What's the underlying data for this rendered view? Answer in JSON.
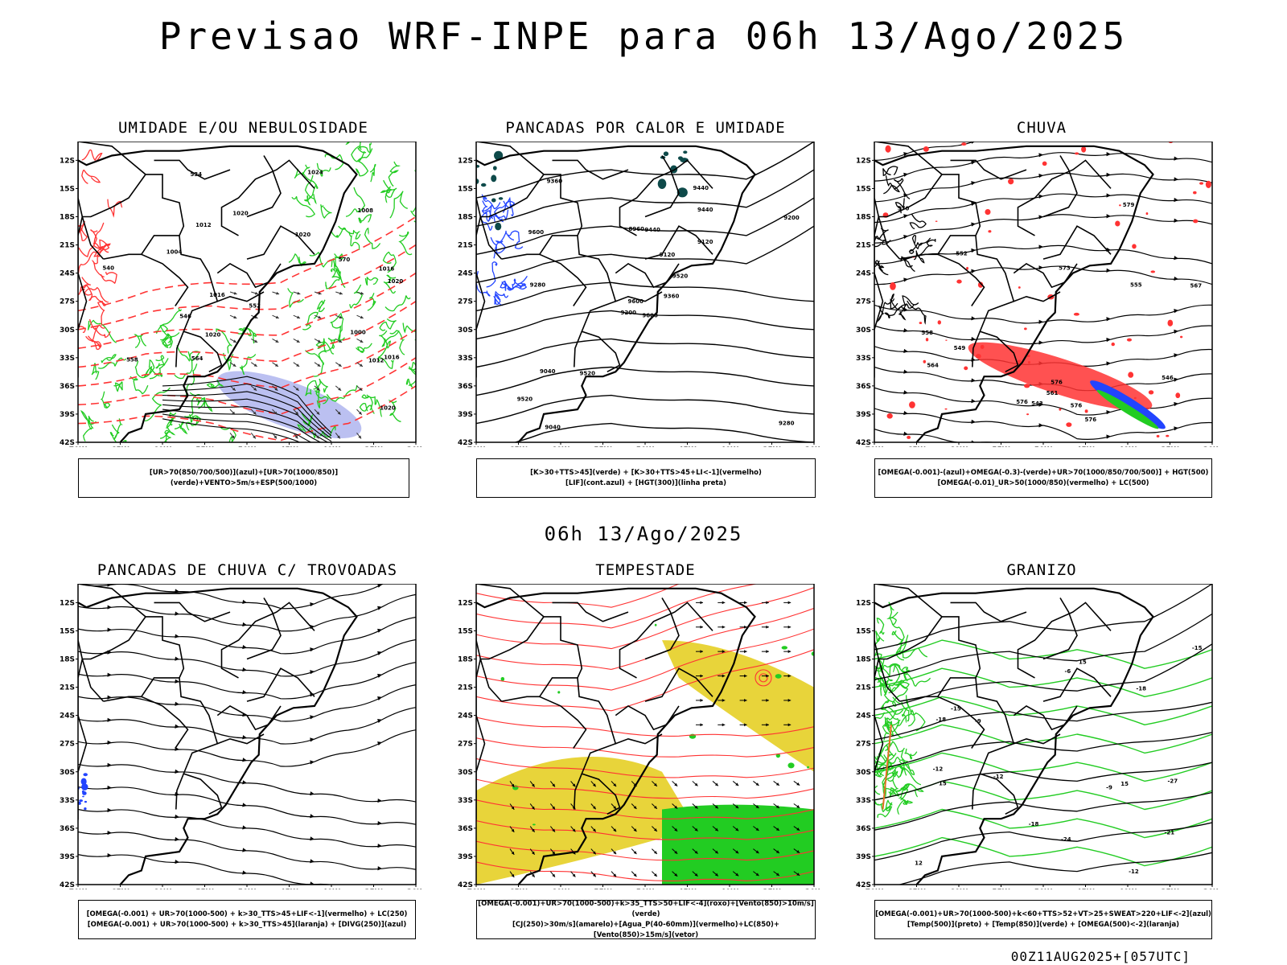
{
  "page": {
    "main_title": "Previsao WRF-INPE  para 06h 13/Ago/2025",
    "mid_title": "06h 13/Ago/2025",
    "run_stamp": "00Z11AUG2025+[057UTC]"
  },
  "axes": {
    "lat_labels": [
      "12S",
      "15S",
      "18S",
      "21S",
      "24S",
      "27S",
      "30S",
      "33S",
      "36S",
      "39S",
      "42S"
    ],
    "lon_labels": [
      "70W",
      "65W",
      "60W",
      "55W",
      "50W",
      "45W",
      "40W",
      "35W",
      "30W"
    ]
  },
  "colors": {
    "green": "#22cc22",
    "red": "#ff3333",
    "blue": "#2244ff",
    "lavender": "#aab0ee",
    "yellow": "#e8d43a",
    "dark_teal": "#0e4a4a",
    "black": "#000000"
  },
  "panels": [
    {
      "title": "UMIDADE E/OU NEBULOSIDADE",
      "legend": [
        "[UR>70(850/700/500)](azul)+[UR>70(1000/850)](verde)+VENTO>5m/s+ESP(500/1000)"
      ],
      "labels": [
        "1012",
        "1016",
        "1020",
        "1020",
        "1016",
        "1016",
        "1020",
        "1024",
        "1012",
        "1008",
        "1004",
        "1000",
        "570",
        "564",
        "558",
        "552",
        "546",
        "540",
        "534",
        "1020",
        "1020"
      ]
    },
    {
      "title": "PANCADAS POR CALOR E UMIDADE",
      "legend": [
        "[K>30+TTS>45](verde) + [K>30+TTS>45+LI<-1](vermelho)",
        "[LIF](cont.azul) + [HGT(300)](linha preta)"
      ],
      "labels": [
        "9600",
        "9600",
        "9600",
        "9520",
        "9520",
        "9520",
        "9440",
        "9440",
        "9440",
        "9360",
        "9360",
        "9280",
        "9280",
        "9200",
        "9200",
        "9120",
        "9040",
        "8960",
        "9120",
        "9040"
      ]
    },
    {
      "title": "CHUVA",
      "legend": [
        "[OMEGA(-0.001)-(azul)+OMEGA(-0.3)-(verde)+UR>70(1000/850/700/500)] + HGT(500)",
        "[OMEGA(-0.01)_UR>50(1000/850)(vermelho) + LC(500)"
      ],
      "labels": [
        "576",
        "576",
        "573",
        "570",
        "567",
        "564",
        "561",
        "558",
        "555",
        "552",
        "549",
        "546",
        "543",
        "576",
        "579",
        "576"
      ]
    },
    {
      "title": "PANCADAS DE CHUVA C/ TROVOADAS",
      "legend": [
        "[OMEGA(-0.001) + UR>70(1000-500) + k>30_TTS>45+LIF<-1](vermelho) + LC(250)",
        "[OMEGA(-0.001) + UR>70(1000-500) + k>30_TTS>45](laranja) + [DIVG(250)](azul)"
      ],
      "labels": []
    },
    {
      "title": "TEMPESTADE",
      "legend": [
        "[OMEGA(-0.001)+UR>70(1000-500)+k>35_TTS>50+LIF<-4](roxo)+[Vento(850)>10m/s](verde)",
        "[CJ(250)>30m/s](amarelo)+[Agua_P(40-60mm)](vermelho)+LC(850)+[Vento(850)>15m/s](vetor)"
      ],
      "labels": []
    },
    {
      "title": "GRANIZO",
      "legend": [
        "[OMEGA(-0.001)+UR>70(1000-500)+k<60+TTS>52+VT>25+SWEAT>220+LIF<-2](azul)",
        "[Temp(500)](preto) + [Temp(850)](verde) + [OMEGA(500)<-2](laranja)"
      ],
      "labels": [
        "-6",
        "-9",
        "-12",
        "-12",
        "-15",
        "-18",
        "-18",
        "-21",
        "-24",
        "-27",
        "-18",
        "-15",
        "-12",
        "-9",
        "12",
        "15",
        "15",
        "15"
      ]
    }
  ]
}
